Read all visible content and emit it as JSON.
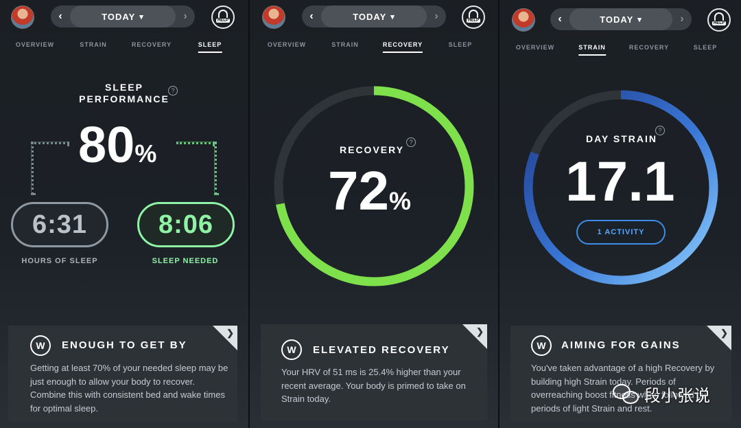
{
  "header": {
    "date_label": "TODAY",
    "help_label": "HELP",
    "tabs": [
      "OVERVIEW",
      "STRAIN",
      "RECOVERY",
      "SLEEP"
    ]
  },
  "sleep": {
    "active_tab": "SLEEP",
    "performance_label_line1": "SLEEP",
    "performance_label_line2": "PERFORMANCE",
    "performance_value": "80",
    "performance_unit": "%",
    "hours_of_sleep": "6:31",
    "hours_of_sleep_label": "HOURS OF SLEEP",
    "sleep_needed": "8:06",
    "sleep_needed_label": "SLEEP NEEDED",
    "card_title": "ENOUGH TO GET BY",
    "card_text": "Getting at least 70% of your needed sleep may be just enough to allow your body to recover. Combine this with consistent bed and wake times for optimal sleep."
  },
  "recovery": {
    "active_tab": "RECOVERY",
    "label": "RECOVERY",
    "value": "72",
    "unit": "%",
    "ring_fraction": 0.72,
    "card_title": "ELEVATED RECOVERY",
    "card_text": "Your HRV of 51 ms is 25.4% higher than your recent average. Your body is primed to take on Strain today."
  },
  "strain": {
    "active_tab": "STRAIN",
    "label": "DAY STRAIN",
    "value": "17.1",
    "ring_fraction": 0.81,
    "activity_button": "1 ACTIVITY",
    "card_title": "AIMING FOR GAINS",
    "card_text": "You've taken advantage of a high Recovery by building high Strain today. Periods of overreaching boost fitness when followed by periods of light Strain and rest."
  },
  "watermark": "段小张说",
  "colors": {
    "sleep_green": "#8ef3a4",
    "recovery_green": "#7ee04a",
    "strain_blue": "#3d8ee8",
    "ring_track": "#2f3439"
  }
}
